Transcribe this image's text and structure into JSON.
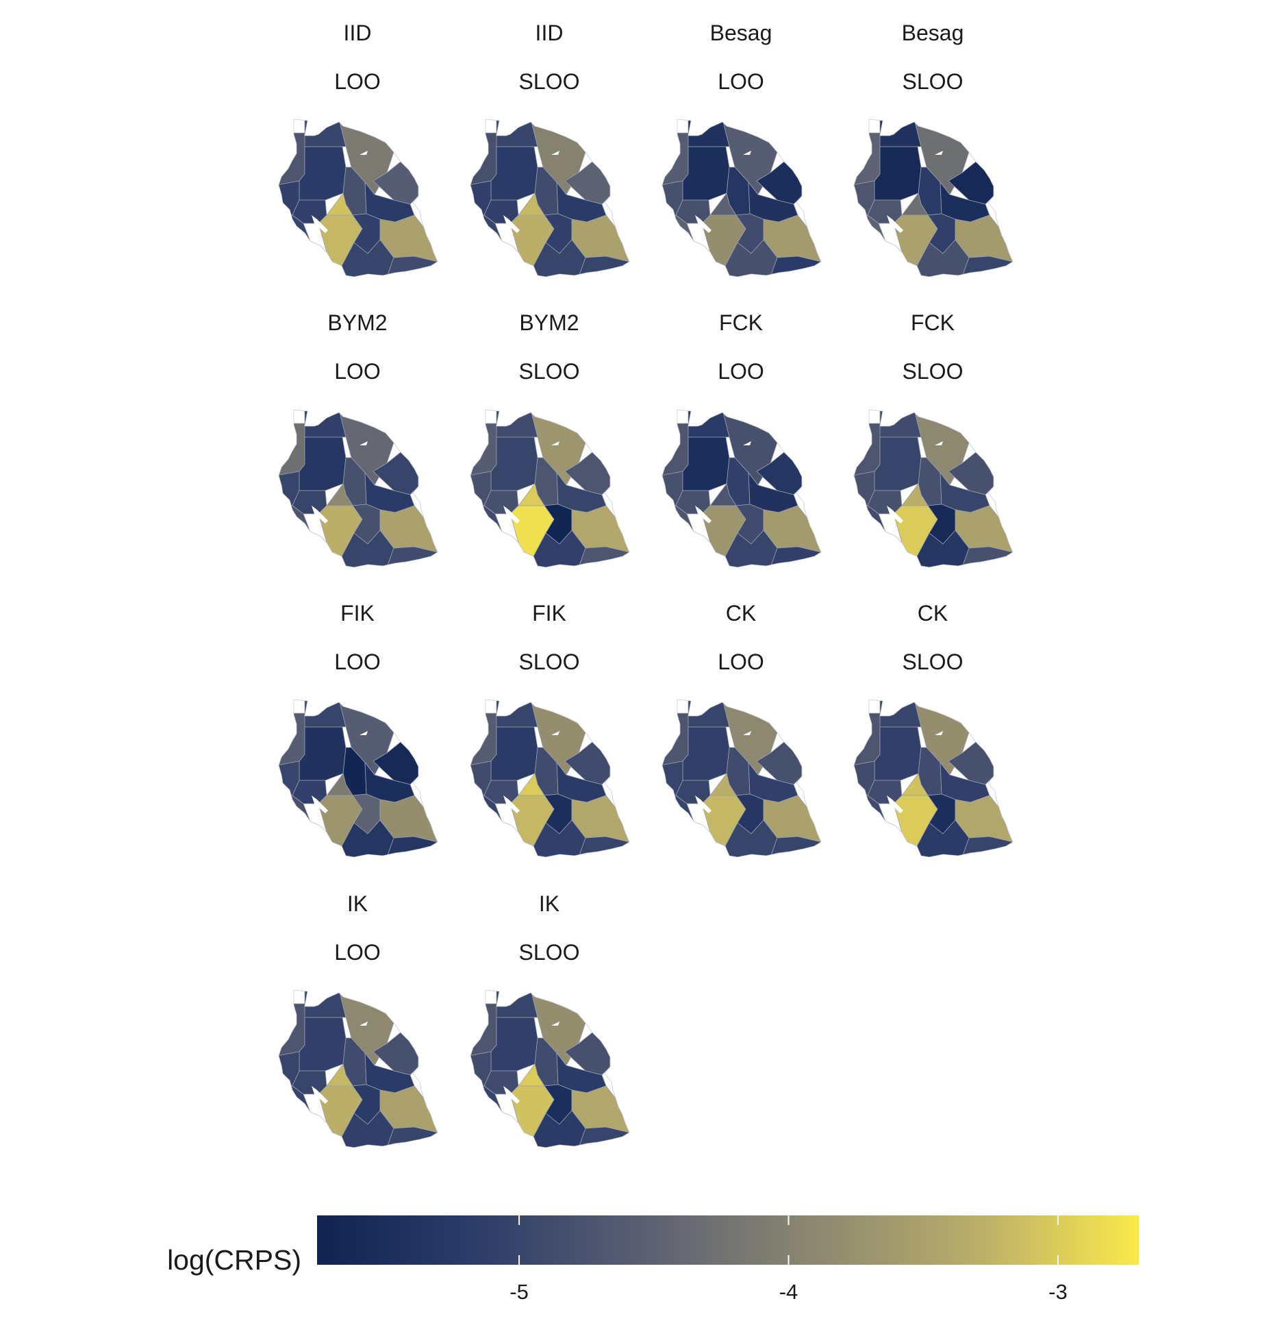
{
  "chart_data": {
    "type": "heatmap",
    "title": "",
    "subtitle": "",
    "legend": {
      "title": "log(CRPS)",
      "position": "bottom",
      "range": [
        -5.75,
        -2.7
      ],
      "ticks": [
        -5,
        -4,
        -3
      ],
      "tick_labels": [
        "-5",
        "-4",
        "-3"
      ],
      "colors": [
        "#0f2451",
        "#2e3d69",
        "#5b6072",
        "#8b8770",
        "#b9ad6a",
        "#fbe94a"
      ]
    },
    "panels": [
      {
        "model": "IID",
        "cv": "LOO",
        "values": [
          -4.7,
          -5.2,
          -4.1,
          -4.6,
          -5.0,
          -5.1,
          -5.0,
          -5.1,
          -4.8,
          -5.2,
          -3.2,
          -5.1,
          -3.5,
          -5.0,
          -3.1,
          -5.0,
          -4.9,
          -4.7
        ]
      },
      {
        "model": "IID",
        "cv": "SLOO",
        "values": [
          -4.8,
          -5.2,
          -4.0,
          -4.5,
          -5.0,
          -5.1,
          -5.0,
          -5.1,
          -4.9,
          -5.2,
          -3.3,
          -5.1,
          -3.5,
          -5.0,
          -3.2,
          -5.0,
          -5.0,
          -4.8
        ]
      },
      {
        "model": "Besag",
        "cv": "LOO",
        "values": [
          -4.6,
          -5.5,
          -4.6,
          -5.5,
          -5.4,
          -4.8,
          -4.5,
          -4.8,
          -5.3,
          -5.4,
          -3.8,
          -4.9,
          -3.6,
          -4.8,
          -4.5,
          -4.9,
          -5.2,
          -5.0
        ]
      },
      {
        "model": "Besag",
        "cv": "SLOO",
        "values": [
          -4.5,
          -5.6,
          -4.3,
          -5.6,
          -5.4,
          -4.7,
          -4.5,
          -4.7,
          -5.2,
          -5.5,
          -3.5,
          -5.1,
          -3.6,
          -4.8,
          -4.3,
          -4.8,
          -5.0,
          -4.9
        ]
      },
      {
        "model": "BYM2",
        "cv": "LOO",
        "values": [
          -4.3,
          -5.3,
          -4.4,
          -5.0,
          -5.1,
          -5.0,
          -4.7,
          -5.0,
          -4.8,
          -5.2,
          -3.3,
          -4.8,
          -3.5,
          -5.0,
          -3.9,
          -5.0,
          -4.9,
          -4.6
        ]
      },
      {
        "model": "BYM2",
        "cv": "SLOO",
        "values": [
          -4.6,
          -5.0,
          -3.7,
          -4.7,
          -4.9,
          -4.8,
          -4.9,
          -4.8,
          -4.7,
          -5.0,
          -2.8,
          -5.7,
          -3.4,
          -5.1,
          -3.0,
          -5.0,
          -4.7,
          -4.6
        ]
      },
      {
        "model": "FCK",
        "cv": "LOO",
        "values": [
          -4.7,
          -5.5,
          -4.8,
          -5.3,
          -5.2,
          -4.8,
          -4.7,
          -4.8,
          -5.1,
          -5.4,
          -3.7,
          -4.9,
          -3.6,
          -5.0,
          -4.7,
          -5.0,
          -5.1,
          -4.9
        ]
      },
      {
        "model": "FCK",
        "cv": "SLOO",
        "values": [
          -4.7,
          -5.0,
          -3.9,
          -4.8,
          -4.9,
          -4.8,
          -4.9,
          -4.8,
          -4.8,
          -5.0,
          -3.0,
          -5.6,
          -3.5,
          -5.3,
          -3.3,
          -5.2,
          -4.8,
          -4.7
        ]
      },
      {
        "model": "FIK",
        "cv": "LOO",
        "values": [
          -4.6,
          -5.4,
          -4.6,
          -5.6,
          -5.0,
          -5.0,
          -4.8,
          -5.1,
          -5.7,
          -5.5,
          -3.7,
          -4.5,
          -3.8,
          -5.3,
          -4.1,
          -5.4,
          -5.3,
          -5.2
        ]
      },
      {
        "model": "FIK",
        "cv": "SLOO",
        "values": [
          -4.6,
          -5.2,
          -3.8,
          -4.9,
          -5.0,
          -4.9,
          -5.0,
          -4.9,
          -4.9,
          -5.2,
          -3.2,
          -5.5,
          -3.4,
          -5.1,
          -3.0,
          -5.2,
          -5.0,
          -4.8
        ]
      },
      {
        "model": "CK",
        "cv": "LOO",
        "values": [
          -4.7,
          -5.1,
          -3.9,
          -4.8,
          -5.0,
          -5.0,
          -5.0,
          -5.0,
          -4.9,
          -5.1,
          -3.2,
          -5.3,
          -3.5,
          -5.0,
          -3.3,
          -5.0,
          -5.0,
          -4.8
        ]
      },
      {
        "model": "CK",
        "cv": "SLOO",
        "values": [
          -4.7,
          -5.1,
          -3.8,
          -4.8,
          -5.0,
          -4.9,
          -4.9,
          -4.9,
          -4.9,
          -5.1,
          -3.0,
          -5.5,
          -3.4,
          -5.2,
          -3.1,
          -5.2,
          -5.0,
          -4.8
        ]
      },
      {
        "model": "IK",
        "cv": "LOO",
        "values": [
          -4.7,
          -5.1,
          -3.9,
          -4.8,
          -5.0,
          -5.0,
          -5.0,
          -5.0,
          -4.9,
          -5.2,
          -3.3,
          -5.2,
          -3.5,
          -5.1,
          -3.2,
          -5.1,
          -5.0,
          -4.8
        ]
      },
      {
        "model": "IK",
        "cv": "SLOO",
        "values": [
          -4.7,
          -5.1,
          -3.8,
          -4.8,
          -5.0,
          -4.9,
          -5.0,
          -4.9,
          -4.9,
          -5.2,
          -3.1,
          -5.5,
          -3.4,
          -5.2,
          -3.0,
          -5.2,
          -5.0,
          -4.8
        ]
      }
    ]
  }
}
